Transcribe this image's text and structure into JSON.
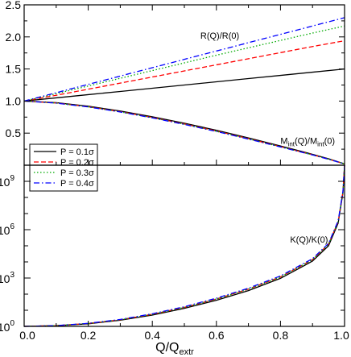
{
  "chart_data": [
    {
      "type": "line",
      "panel": "top",
      "xlim": [
        0,
        1
      ],
      "ylim": [
        0,
        2.5
      ],
      "y_ticks": [
        0.5,
        1.0,
        1.5,
        2.0,
        2.5
      ],
      "y_tick_labels": [
        "0.5",
        "1.0",
        "1.5",
        "2.0",
        "2.5"
      ],
      "annotations": [
        {
          "text": "R(Q)/R(0)",
          "x": 0.55,
          "y": 1.97
        },
        {
          "main": "M",
          "sub": "int",
          "mid": "(Q)/M",
          "sub2": "int",
          "tail": "(0)",
          "x": 0.8,
          "y": 0.33
        }
      ],
      "series": [
        {
          "name": "P = 0.1σ",
          "color": "#000000",
          "dash": "solid",
          "curves": [
            {
              "x": [
                0,
                0.1,
                0.2,
                0.3,
                0.4,
                0.5,
                0.6,
                0.7,
                0.8,
                0.9,
                1.0
              ],
              "y": [
                1.0,
                1.05,
                1.1,
                1.15,
                1.2,
                1.25,
                1.3,
                1.35,
                1.4,
                1.45,
                1.5
              ]
            },
            {
              "x": [
                0,
                0.1,
                0.2,
                0.3,
                0.4,
                0.5,
                0.6,
                0.7,
                0.8,
                0.9,
                0.95,
                1.0
              ],
              "y": [
                1.0,
                0.975,
                0.92,
                0.845,
                0.755,
                0.655,
                0.545,
                0.425,
                0.3,
                0.17,
                0.1,
                0.02
              ]
            }
          ]
        },
        {
          "name": "P = 0.2σ",
          "color": "#ff0000",
          "dash": "dashed",
          "curves": [
            {
              "x": [
                0,
                0.1,
                0.2,
                0.3,
                0.4,
                0.5,
                0.6,
                0.7,
                0.8,
                0.9,
                1.0
              ],
              "y": [
                1.0,
                1.09,
                1.185,
                1.28,
                1.375,
                1.47,
                1.565,
                1.66,
                1.755,
                1.85,
                1.94
              ]
            },
            {
              "x": [
                0,
                0.1,
                0.2,
                0.3,
                0.4,
                0.5,
                0.6,
                0.7,
                0.8,
                0.9,
                0.95,
                1.0
              ],
              "y": [
                1.0,
                0.97,
                0.912,
                0.835,
                0.744,
                0.643,
                0.533,
                0.414,
                0.29,
                0.163,
                0.095,
                0.02
              ]
            }
          ]
        },
        {
          "name": "P = 0.3σ",
          "color": "#00aa00",
          "dash": "dotted",
          "curves": [
            {
              "x": [
                0,
                0.1,
                0.2,
                0.3,
                0.4,
                0.5,
                0.6,
                0.7,
                0.8,
                0.9,
                1.0
              ],
              "y": [
                1.0,
                1.115,
                1.235,
                1.355,
                1.475,
                1.595,
                1.715,
                1.83,
                1.945,
                2.06,
                2.17
              ]
            },
            {
              "x": [
                0,
                0.1,
                0.2,
                0.3,
                0.4,
                0.5,
                0.6,
                0.7,
                0.8,
                0.9,
                0.95,
                1.0
              ],
              "y": [
                1.0,
                0.969,
                0.91,
                0.832,
                0.74,
                0.639,
                0.529,
                0.41,
                0.287,
                0.161,
                0.094,
                0.02
              ]
            }
          ]
        },
        {
          "name": "P = 0.4σ",
          "color": "#0000ff",
          "dash": "dashdot",
          "curves": [
            {
              "x": [
                0,
                0.1,
                0.2,
                0.3,
                0.4,
                0.5,
                0.6,
                0.7,
                0.8,
                0.9,
                1.0
              ],
              "y": [
                1.0,
                1.13,
                1.26,
                1.39,
                1.52,
                1.65,
                1.78,
                1.91,
                2.04,
                2.17,
                2.3
              ]
            },
            {
              "x": [
                0,
                0.1,
                0.2,
                0.3,
                0.4,
                0.5,
                0.6,
                0.7,
                0.8,
                0.9,
                0.95,
                1.0
              ],
              "y": [
                1.0,
                0.968,
                0.908,
                0.83,
                0.738,
                0.636,
                0.526,
                0.407,
                0.285,
                0.16,
                0.093,
                0.02
              ]
            }
          ]
        }
      ],
      "legend": {
        "position": "bottom-left",
        "entries": [
          "P = 0.1σ",
          "P = 0.2σ",
          "P = 0.3σ",
          "P = 0.4σ"
        ]
      }
    },
    {
      "type": "line",
      "panel": "bottom",
      "xlim": [
        0,
        1
      ],
      "x_ticks": [
        0.0,
        0.2,
        0.4,
        0.6,
        0.8,
        1.0
      ],
      "x_tick_labels": [
        "0.0",
        "0.2",
        "0.4",
        "0.6",
        "0.8",
        "1.0"
      ],
      "xlabel": {
        "main": "Q/Q",
        "sub": "extr"
      },
      "yscale": "log",
      "ylim_log10": [
        0,
        10
      ],
      "y_ticks_log10": [
        0,
        3,
        6,
        9
      ],
      "y_tick_labels": [
        {
          "base": "10",
          "exp": "0"
        },
        {
          "base": "10",
          "exp": "3"
        },
        {
          "base": "10",
          "exp": "6"
        },
        {
          "base": "10",
          "exp": "9"
        }
      ],
      "annotations": [
        {
          "text": "K(Q)/K(0)",
          "x": 0.83,
          "y_log10": 5.2
        }
      ],
      "series": [
        {
          "name": "P = 0.1σ",
          "color": "#000000",
          "dash": "solid",
          "x": [
            0,
            0.1,
            0.2,
            0.3,
            0.4,
            0.5,
            0.6,
            0.7,
            0.8,
            0.9,
            0.95,
            0.98,
            0.995,
            1.0
          ],
          "y_log10": [
            0,
            0.04,
            0.16,
            0.38,
            0.7,
            1.12,
            1.62,
            2.22,
            2.98,
            4.05,
            5.0,
            6.4,
            8.3,
            10.0
          ]
        },
        {
          "name": "P = 0.2σ",
          "color": "#ff0000",
          "dash": "dashed",
          "x": [
            0,
            0.1,
            0.2,
            0.3,
            0.4,
            0.5,
            0.6,
            0.7,
            0.8,
            0.9,
            0.95,
            0.98,
            0.995,
            1.0
          ],
          "y_log10": [
            0,
            0.045,
            0.18,
            0.41,
            0.75,
            1.18,
            1.7,
            2.31,
            3.07,
            4.14,
            5.1,
            6.5,
            8.35,
            10.0
          ]
        },
        {
          "name": "P = 0.3σ",
          "color": "#00aa00",
          "dash": "dotted",
          "x": [
            0,
            0.1,
            0.2,
            0.3,
            0.4,
            0.5,
            0.6,
            0.7,
            0.8,
            0.9,
            0.95,
            0.98,
            0.995,
            1.0
          ],
          "y_log10": [
            0,
            0.045,
            0.18,
            0.41,
            0.75,
            1.18,
            1.7,
            2.31,
            3.07,
            4.14,
            5.1,
            6.5,
            8.35,
            10.0
          ]
        },
        {
          "name": "P = 0.4σ",
          "color": "#0000ff",
          "dash": "dashdot",
          "x": [
            0,
            0.1,
            0.2,
            0.3,
            0.4,
            0.5,
            0.6,
            0.7,
            0.8,
            0.9,
            0.95,
            0.98,
            0.995,
            1.0
          ],
          "y_log10": [
            0,
            0.048,
            0.19,
            0.43,
            0.78,
            1.22,
            1.75,
            2.37,
            3.13,
            4.2,
            5.15,
            6.55,
            8.4,
            10.0
          ]
        }
      ]
    }
  ]
}
